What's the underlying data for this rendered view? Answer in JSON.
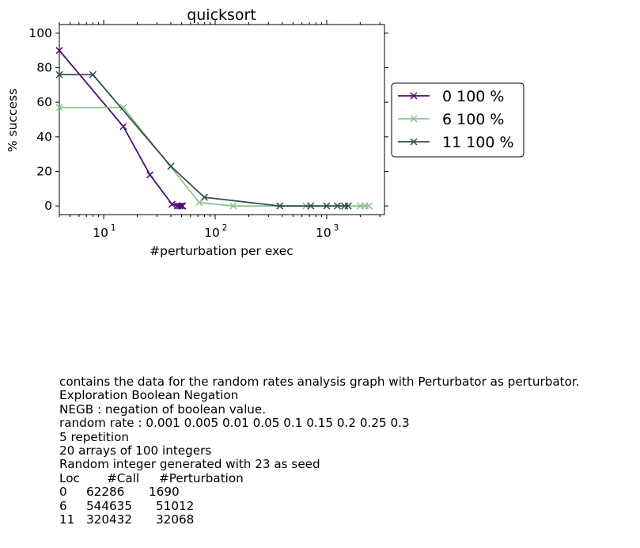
{
  "chart_data": {
    "type": "line",
    "title": "quicksort",
    "xlabel": "#perturbation per exec",
    "ylabel": "% success",
    "xscale": "log",
    "xlim": [
      4,
      3300
    ],
    "ylim": [
      -5,
      105
    ],
    "yticks": [
      0,
      20,
      40,
      60,
      80,
      100
    ],
    "xtick_labels": [
      {
        "base": "10",
        "exp": "1"
      },
      {
        "base": "10",
        "exp": "2"
      },
      {
        "base": "10",
        "exp": "3"
      }
    ],
    "legend_position": "right-outside",
    "grid": false,
    "series": [
      {
        "name": "0 100 %",
        "color": "#4b0a73",
        "x": [
          4,
          15,
          26,
          41,
          46,
          48,
          50,
          51
        ],
        "y": [
          90,
          46,
          18,
          1,
          0,
          0,
          0,
          0
        ]
      },
      {
        "name": "6 100 %",
        "color": "#90c28e",
        "x": [
          4,
          15,
          72,
          145,
          650,
          2000,
          2200,
          2400
        ],
        "y": [
          57,
          57,
          2,
          0,
          0,
          0,
          0,
          0
        ]
      },
      {
        "name": "11 100 %",
        "color": "#2e4f4a",
        "x": [
          4,
          8,
          40,
          80,
          380,
          720,
          1000,
          1250,
          1450,
          1560
        ],
        "y": [
          76,
          76,
          23,
          5,
          0,
          0,
          0,
          0,
          0,
          0
        ]
      }
    ]
  },
  "description": {
    "lines": [
      "contains the data for the random rates analysis graph with Perturbator as perturbator.",
      "Exploration Boolean Negation",
      "NEGB : negation of boolean value.",
      "random rate : 0.001 0.005 0.01 0.05 0.1 0.15 0.2 0.25 0.3",
      "5 repetition",
      "20 arrays of 100 integers",
      "Random integer generated with 23 as seed"
    ],
    "table": {
      "headers": [
        "Loc",
        "#Call",
        "#Perturbation"
      ],
      "rows": [
        [
          "0",
          "62286",
          "1690"
        ],
        [
          "6",
          "544635",
          "51012"
        ],
        [
          "11",
          "320432",
          "32068"
        ]
      ]
    }
  }
}
